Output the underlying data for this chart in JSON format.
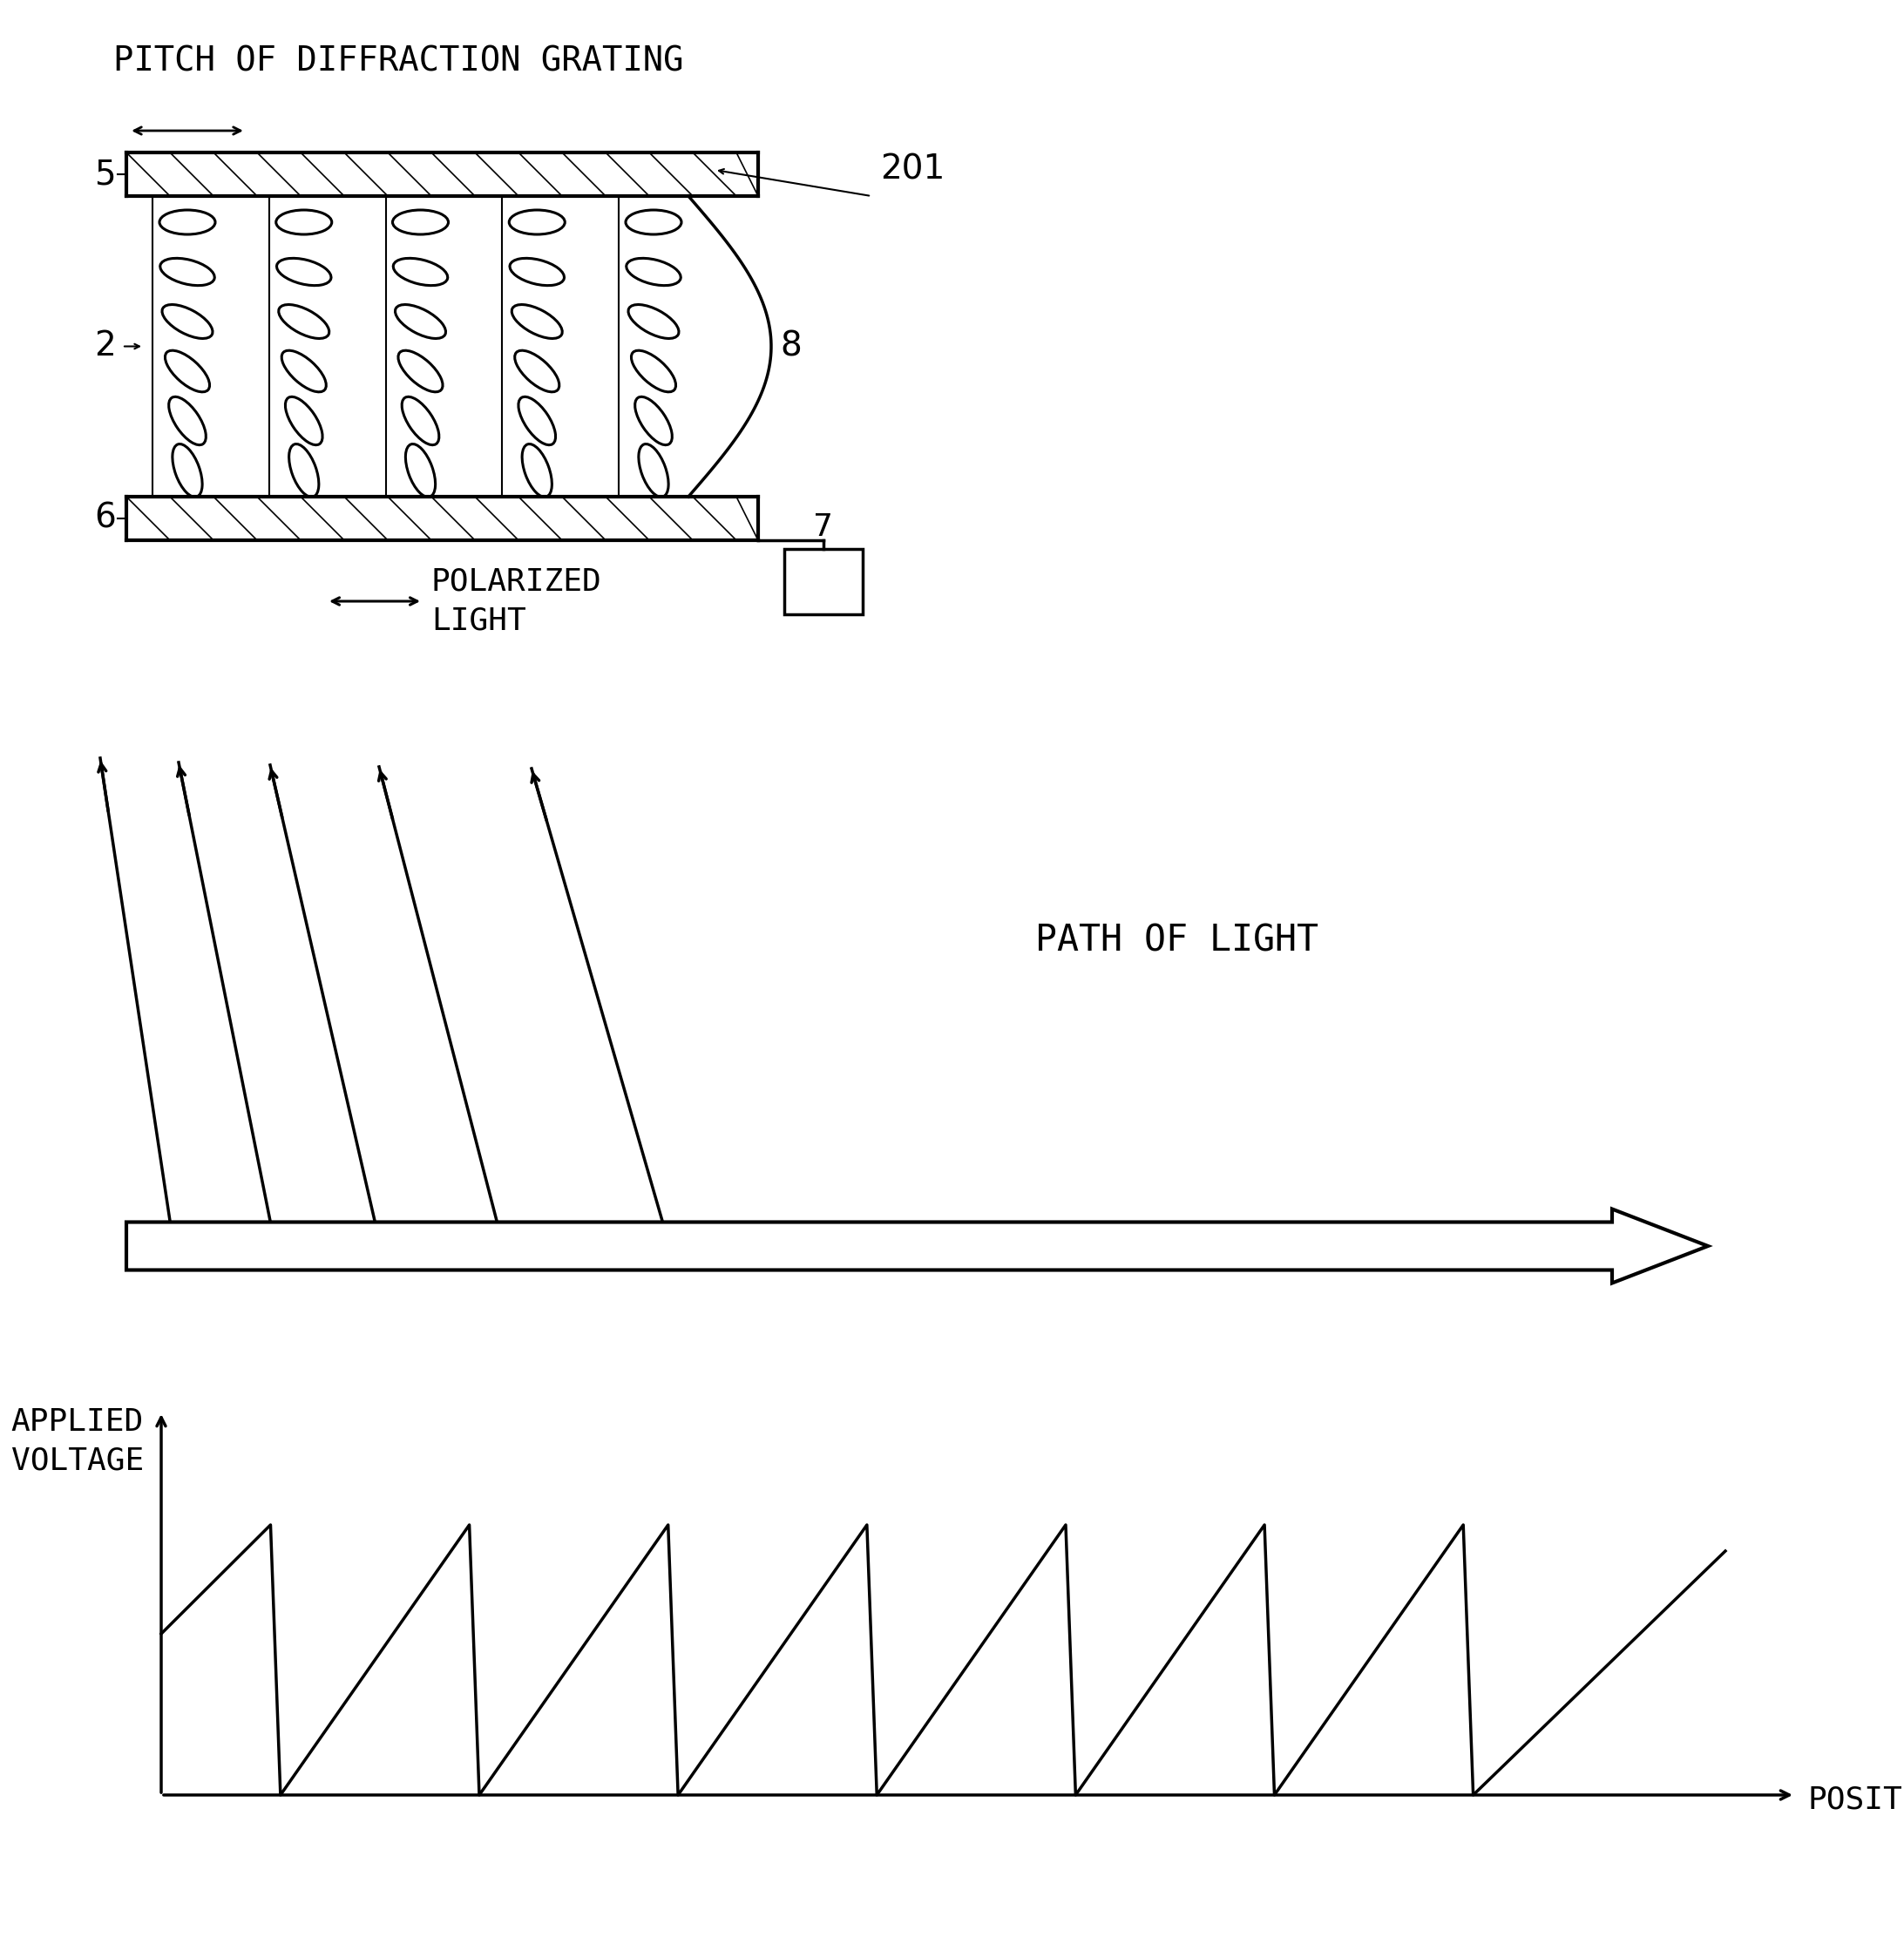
{
  "bg_color": "#ffffff",
  "line_color": "#000000",
  "title_text": "PITCH OF DIFFRACTION GRATING",
  "label_201": "201",
  "label_2": "2",
  "label_5": "5",
  "label_6": "6",
  "label_7": "7",
  "label_8": "8",
  "polarized_light_text": "POLARIZED\nLIGHT",
  "path_of_light_text": "PATH OF LIGHT",
  "applied_voltage_text": "APPLIED\nVOLTAGE",
  "position_text": "POSITION",
  "font_size_main": 26,
  "font_size_label": 28,
  "font_size_axis": 26
}
